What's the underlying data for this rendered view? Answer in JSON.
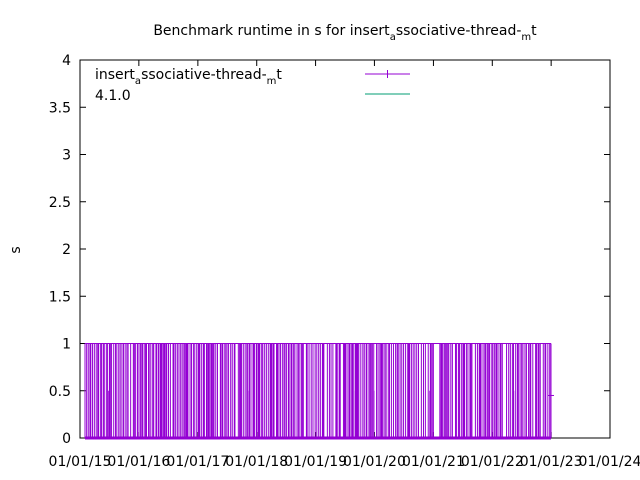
{
  "chart_data": {
    "type": "line",
    "title_parts": [
      "Benchmark runtime in s for insert",
      "a",
      "ssociative-thread-",
      "m",
      "t"
    ],
    "xlabel": "",
    "ylabel": "s",
    "ylim": [
      0,
      4
    ],
    "yticks": [
      "0",
      "0.5",
      "1",
      "1.5",
      "2",
      "2.5",
      "3",
      "3.5",
      "4"
    ],
    "xlim": [
      "2015-01-01",
      "2024-01-01"
    ],
    "xticks": [
      "01/01/15",
      "01/01/16",
      "01/01/17",
      "01/01/18",
      "01/01/19",
      "01/01/20",
      "01/01/21",
      "01/01/22",
      "01/01/23",
      "01/01/24"
    ],
    "grid": false,
    "legend_position": "top-left",
    "series": [
      {
        "name_parts": [
          "insert",
          "a",
          "ssociative-thread-",
          "m",
          "t"
        ],
        "color": "#9400d3",
        "marker": "plus",
        "range": [
          "2015-02-01",
          "2022-12-31"
        ],
        "value_levels": [
          0,
          1
        ],
        "description_of_values": "oscillates densely between 0 and 1"
      },
      {
        "name": "4.1.0",
        "color": "#009e73"
      }
    ]
  }
}
